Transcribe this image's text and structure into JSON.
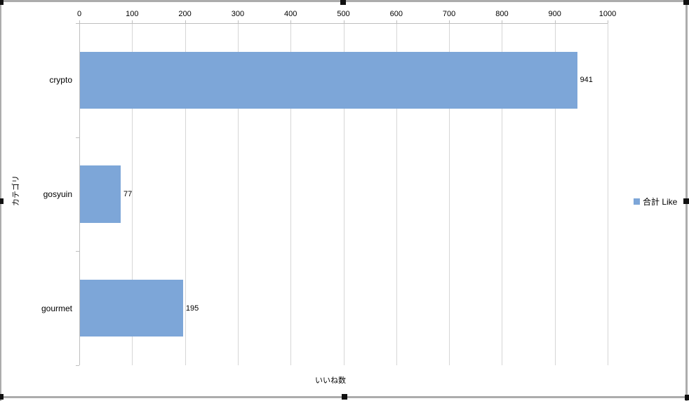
{
  "chart_data": {
    "type": "bar",
    "orientation": "horizontal",
    "title": "",
    "xlabel": "いいね数",
    "ylabel": "カテゴリ",
    "categories": [
      "crypto",
      "gosyuin",
      "gourmet"
    ],
    "series": [
      {
        "name": "合計 Like",
        "values": [
          941,
          77,
          195
        ],
        "color": "#7da6d8"
      }
    ],
    "data_labels": [
      "941",
      "77",
      "195"
    ],
    "xlim": [
      0,
      1000
    ],
    "x_ticks": [
      0,
      100,
      200,
      300,
      400,
      500,
      600,
      700,
      800,
      900,
      1000
    ],
    "grid": true,
    "legend_position": "right"
  },
  "legend": {
    "label": "合計 Like"
  },
  "axes": {
    "x_title": "いいね数",
    "y_title": "カテゴリ"
  }
}
